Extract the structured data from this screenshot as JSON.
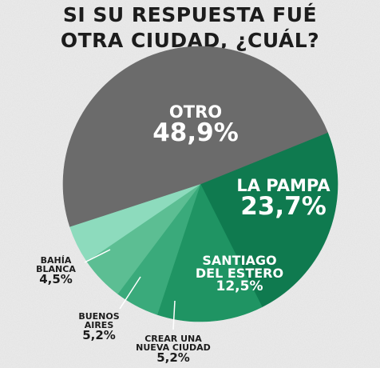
{
  "title_lines": [
    "SI SU RESPUESTA FUÉ",
    "OTRA CIUDAD, ¿CUÁL?"
  ],
  "chart_data": {
    "type": "pie",
    "title": "SI SU RESPUESTA FUÉ OTRA CIUDAD, ¿CUÁL?",
    "start_angle_deg": 68,
    "slices": [
      {
        "label_lines": [
          "LA PAMPA"
        ],
        "value": 23.7,
        "value_label": "23,7%",
        "color": "#0f7a4f"
      },
      {
        "label_lines": [
          "SANTIAGO",
          "DEL ESTERO"
        ],
        "value": 12.5,
        "value_label": "12,5%",
        "color": "#1f9463"
      },
      {
        "label_lines": [
          "CREAR UNA",
          "NUEVA CIUDAD"
        ],
        "value": 5.2,
        "value_label": "5,2%",
        "color": "#3aaa7b"
      },
      {
        "label_lines": [
          "BUENOS",
          "AIRES"
        ],
        "value": 5.2,
        "value_label": "5,2%",
        "color": "#5cbe93"
      },
      {
        "label_lines": [
          "BAHÍA",
          "BLANCA"
        ],
        "value": 4.5,
        "value_label": "4,5%",
        "color": "#8ddbbd"
      },
      {
        "label_lines": [
          "OTRO"
        ],
        "value": 48.9,
        "value_label": "48,9%",
        "color": "#6b6b6b"
      }
    ]
  }
}
